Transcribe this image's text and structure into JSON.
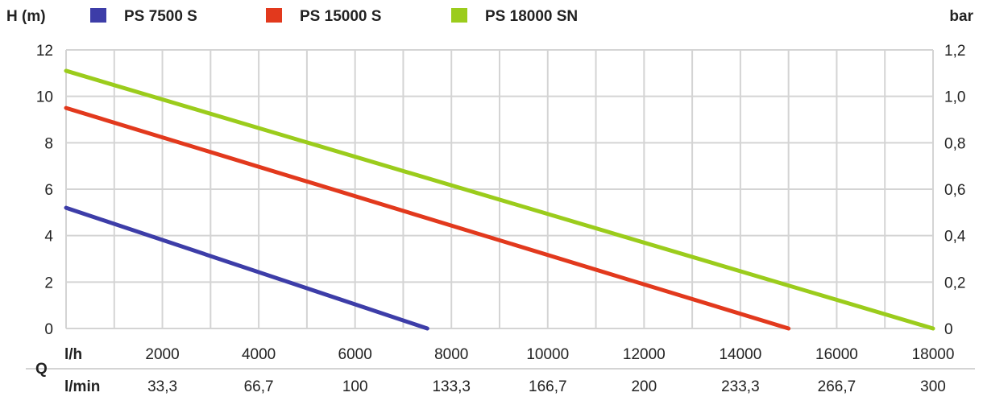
{
  "chart_data": {
    "type": "line",
    "ylabel_left": "H (m)",
    "ylabel_right": "bar",
    "xlabel": "Q",
    "x_row_labels": [
      "l/h",
      "l/min"
    ],
    "xlim": [
      0,
      18000
    ],
    "ylim": [
      0,
      12
    ],
    "x_ticks": [
      2000,
      4000,
      6000,
      8000,
      10000,
      12000,
      14000,
      16000,
      18000
    ],
    "x_tick_labels_lh": [
      "2000",
      "4000",
      "6000",
      "8000",
      "10000",
      "12000",
      "14000",
      "16000",
      "18000"
    ],
    "x_tick_labels_lmin": [
      "33,3",
      "66,7",
      "100",
      "133,3",
      "166,7",
      "200",
      "233,3",
      "266,7",
      "300"
    ],
    "y_ticks": [
      0,
      2,
      4,
      6,
      8,
      10,
      12
    ],
    "y_tick_labels_left": [
      "0",
      "2",
      "4",
      "6",
      "8",
      "10",
      "12"
    ],
    "y_tick_labels_right": [
      "0",
      "0,2",
      "0,4",
      "0,6",
      "0,8",
      "1,0",
      "1,2"
    ],
    "grid": true,
    "legend_position": "top",
    "series": [
      {
        "name": "PS 7500 S",
        "color": "#3d3da8",
        "x": [
          0,
          7500
        ],
        "y": [
          5.2,
          0
        ]
      },
      {
        "name": "PS 15000 S",
        "color": "#e2391d",
        "x": [
          0,
          15000
        ],
        "y": [
          9.5,
          0
        ]
      },
      {
        "name": "PS 18000 SN",
        "color": "#9bcc1c",
        "x": [
          0,
          18000
        ],
        "y": [
          11.1,
          0
        ]
      }
    ]
  }
}
